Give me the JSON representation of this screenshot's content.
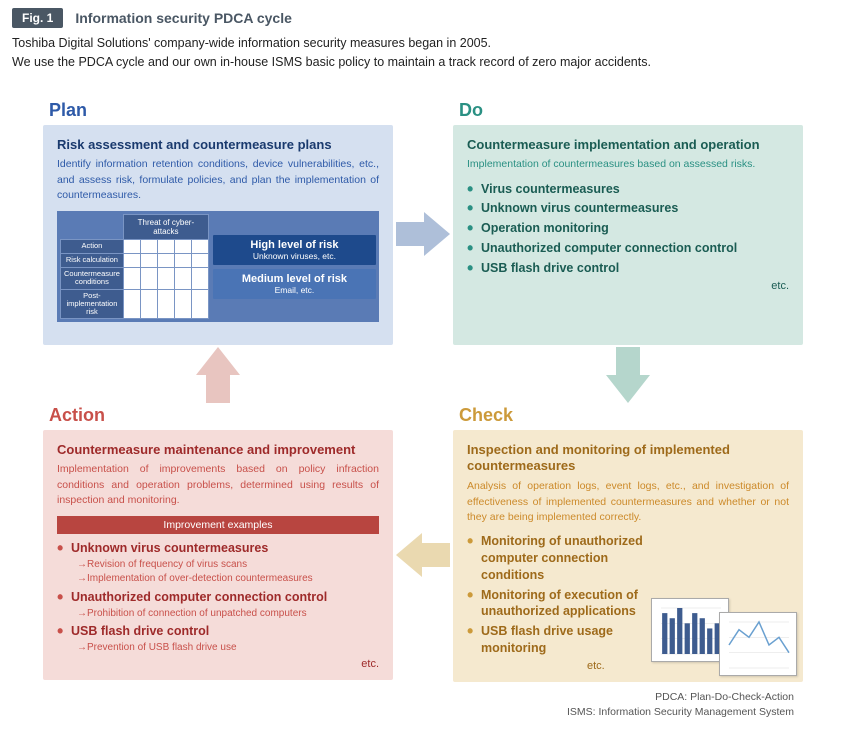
{
  "figure": {
    "badge": "Fig. 1",
    "title": "Information security PDCA cycle"
  },
  "intro_line1": "Toshiba Digital Solutions' company-wide information security measures began in 2005.",
  "intro_line2": "We use the PDCA cycle and our own in-house ISMS basic policy to maintain a track record of zero major accidents.",
  "plan": {
    "label": "Plan",
    "heading": "Risk assessment and countermeasure plans",
    "desc": "Identify information retention conditions, device vulnerabilities, etc., and assess risk, formulate policies, and plan the implementation of countermeasures.",
    "table_header": "Threat of cyber-attacks",
    "rows": [
      "Action",
      "Risk calculation",
      "Countermeasure conditions",
      "Post-implementation risk"
    ],
    "risk_high": {
      "title": "High level of risk",
      "sub": "Unknown viruses, etc."
    },
    "risk_med": {
      "title": "Medium level of risk",
      "sub": "Email, etc."
    },
    "colors": {
      "bg": "#d5e0f0",
      "label": "#2e5aa8",
      "heading": "#1a3a6e",
      "table_bg": "#5a7bb5",
      "cell_header": "#3e5c8f",
      "risk_high_bg": "#1e4a8c",
      "risk_med_bg": "#4a74b5"
    }
  },
  "do": {
    "label": "Do",
    "heading": "Countermeasure implementation and operation",
    "desc": "Implementation of countermeasures based on assessed risks.",
    "items": [
      "Virus countermeasures",
      "Unknown virus countermeasures",
      "Operation monitoring",
      "Unauthorized computer connection control",
      "USB flash drive control"
    ],
    "etc": "etc.",
    "colors": {
      "bg": "#d4e8e2",
      "label": "#2a9083",
      "heading": "#1a5c53"
    }
  },
  "check": {
    "label": "Check",
    "heading": "Inspection and monitoring of implemented countermeasures",
    "desc": "Analysis of operation logs, event logs, etc., and investigation of effectiveness of implemented countermeasures and whether or not they are being implemented correctly.",
    "items": [
      "Monitoring of unauthorized computer connection conditions",
      "Monitoring of execution of unauthorized applications",
      "USB flash drive usage monitoring"
    ],
    "etc": "etc.",
    "mini_bar": {
      "values": [
        8,
        7,
        9,
        6,
        8,
        7,
        5,
        6
      ],
      "color": "#3e5c8f"
    },
    "mini_line": {
      "values": [
        3,
        5,
        4,
        6,
        3,
        4,
        2
      ],
      "color": "#6aa0d0"
    },
    "colors": {
      "bg": "#f5e9cf",
      "label": "#cc9a3a",
      "heading": "#9e6a1a"
    }
  },
  "action": {
    "label": "Action",
    "heading": "Countermeasure maintenance and improvement",
    "desc": "Implementation of improvements based on policy infraction conditions and operation problems, determined using results of inspection and monitoring.",
    "improve_bar": "Improvement examples",
    "items": [
      {
        "title": "Unknown virus countermeasures",
        "subs": [
          "→Revision of frequency of virus scans",
          "→Implementation of over-detection countermeasures"
        ]
      },
      {
        "title": "Unauthorized computer connection control",
        "subs": [
          "→Prohibition of connection of unpatched computers"
        ]
      },
      {
        "title": "USB flash drive control",
        "subs": [
          "→Prevention of USB flash drive use"
        ]
      }
    ],
    "etc": "etc.",
    "colors": {
      "bg": "#f5dcd9",
      "label": "#c8504a",
      "heading": "#9e2a2a",
      "bar_bg": "#b84540"
    }
  },
  "arrows": {
    "plan_do": "#aebfd9",
    "do_check": "#b5d6cc",
    "check_action": "#ead9b0",
    "action_plan": "#e8c5c0"
  },
  "footer": {
    "l1": "PDCA: Plan-Do-Check-Action",
    "l2": "ISMS: Information Security Management System"
  }
}
